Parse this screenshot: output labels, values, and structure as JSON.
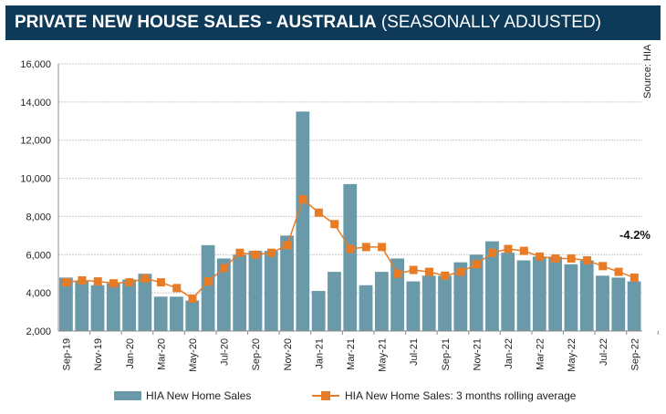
{
  "header": {
    "title": "PRIVATE NEW HOUSE SALES -  AUSTRALIA",
    "subtitle": "(SEASONALLY ADJUSTED)"
  },
  "source": "Source: HIA",
  "annotation": "-4.2%",
  "colors": {
    "bar": "#6a9aa9",
    "line": "#e87b26",
    "title_bg": "#0e3a5a"
  },
  "chart_data": {
    "type": "bar",
    "ylim": [
      2000,
      16000
    ],
    "yticks": [
      "2,000",
      "4,000",
      "6,000",
      "8,000",
      "10,000",
      "12,000",
      "14,000",
      "16,000"
    ],
    "categories": [
      "Sep-19",
      "Oct-19",
      "Nov-19",
      "Dec-19",
      "Jan-20",
      "Feb-20",
      "Mar-20",
      "Apr-20",
      "May-20",
      "Jun-20",
      "Jul-20",
      "Aug-20",
      "Sep-20",
      "Oct-20",
      "Nov-20",
      "Dec-20",
      "Jan-21",
      "Feb-21",
      "Mar-21",
      "Apr-21",
      "May-21",
      "Jun-21",
      "Jul-21",
      "Aug-21",
      "Sep-21",
      "Oct-21",
      "Nov-21",
      "Dec-21",
      "Jan-22",
      "Feb-22",
      "Mar-22",
      "Apr-22",
      "May-22",
      "Jun-22",
      "Jul-22",
      "Aug-22",
      "Sep-22"
    ],
    "tick_labels": [
      "Sep-19",
      "Nov-19",
      "Jan-20",
      "Mar-20",
      "May-20",
      "Jul-20",
      "Sep-20",
      "Nov-20",
      "Jan-21",
      "Mar-21",
      "May-21",
      "Jul-21",
      "Sep-21",
      "Nov-21",
      "Jan-22",
      "Mar-22",
      "May-22",
      "Jul-22",
      "Sep-22"
    ],
    "series": [
      {
        "name": "HIA New Home Sales",
        "type": "bar",
        "values": [
          4800,
          4600,
          4400,
          4500,
          4700,
          5000,
          3800,
          3800,
          3600,
          6500,
          5800,
          6000,
          6200,
          6200,
          7000,
          13500,
          4100,
          5100,
          9700,
          4400,
          5100,
          5800,
          4600,
          4900,
          4900,
          5600,
          6000,
          6700,
          6100,
          5700,
          5900,
          5900,
          5500,
          5700,
          4900,
          4800,
          4600
        ]
      },
      {
        "name": "HIA New Home Sales: 3 months rolling average",
        "type": "line",
        "values": [
          4550,
          4650,
          4600,
          4500,
          4550,
          4750,
          4550,
          4250,
          3700,
          4600,
          5300,
          6100,
          6000,
          6100,
          6500,
          8900,
          8200,
          7600,
          6300,
          6400,
          6400,
          5000,
          5200,
          5100,
          4900,
          5100,
          5500,
          6100,
          6300,
          6200,
          5900,
          5800,
          5800,
          5700,
          5400,
          5100,
          4800
        ]
      }
    ]
  }
}
